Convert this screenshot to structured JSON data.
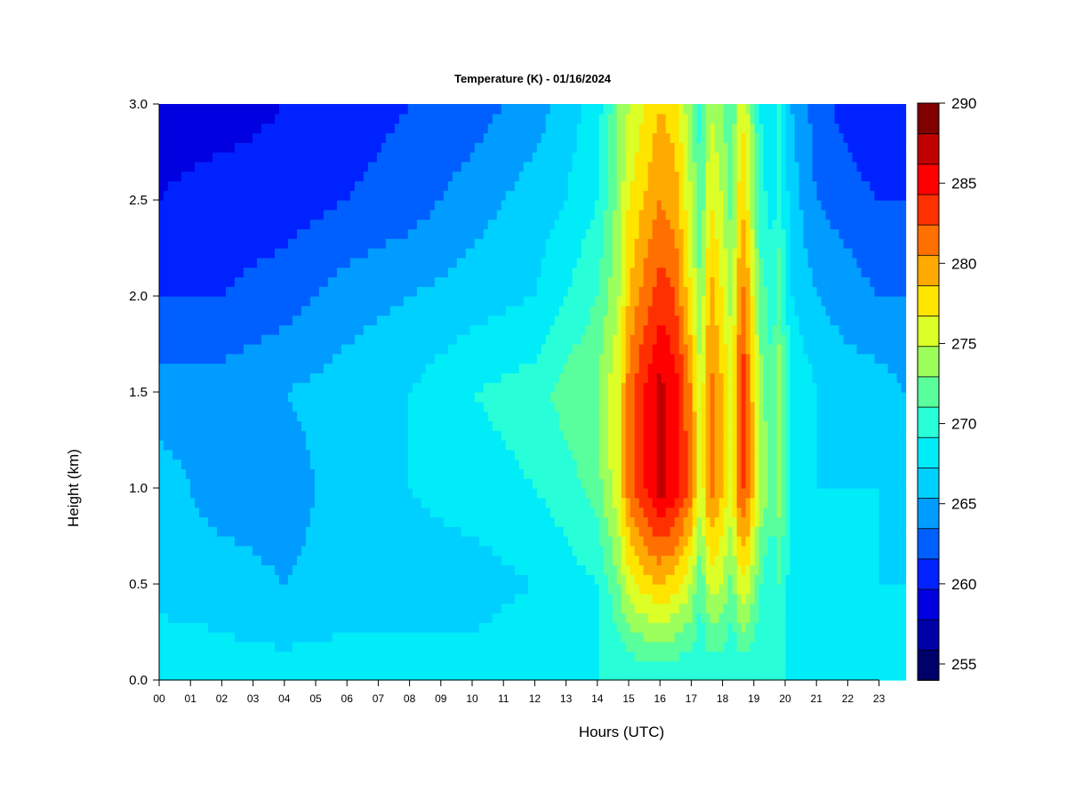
{
  "chart_data": {
    "type": "heatmap",
    "title": "Temperature (K) - 01/16/2024",
    "xlabel": "Hours (UTC)",
    "ylabel": "Height (km)",
    "x_ticks": [
      "00",
      "01",
      "02",
      "03",
      "04",
      "05",
      "06",
      "07",
      "08",
      "09",
      "10",
      "11",
      "12",
      "13",
      "14",
      "15",
      "16",
      "17",
      "18",
      "19",
      "20",
      "21",
      "22",
      "23"
    ],
    "xlim": [
      0,
      23.85
    ],
    "y_ticks": [
      "0.0",
      "0.5",
      "1.0",
      "1.5",
      "2.0",
      "2.5",
      "3.0"
    ],
    "ylim": [
      0,
      3.0
    ],
    "colorbar": {
      "ticks": [
        "255",
        "260",
        "265",
        "270",
        "275",
        "280",
        "285",
        "290"
      ],
      "range": [
        254,
        290
      ],
      "step": 2,
      "colors": [
        "#00006b",
        "#0000a8",
        "#0000e0",
        "#0022ff",
        "#0060ff",
        "#009cff",
        "#00d0ff",
        "#00ecf8",
        "#28ffd8",
        "#58ff9c",
        "#9cff5c",
        "#dcff28",
        "#ffe400",
        "#ffaa00",
        "#ff7000",
        "#ff3000",
        "#ff0000",
        "#c00000",
        "#800000"
      ]
    },
    "z_samples": {
      "description_hours": [
        0,
        2,
        4,
        6,
        8,
        10,
        12,
        13,
        14,
        14.7,
        15,
        15.5,
        16,
        16.5,
        17,
        17.3,
        17.6,
        18,
        18.3,
        18.6,
        18.8,
        19.2,
        19.6,
        19.8,
        20.2,
        21,
        22,
        23,
        23.85
      ],
      "heights_km": [
        0.0,
        0.5,
        1.0,
        1.5,
        2.0,
        2.5,
        3.0
      ]
    },
    "z_profiles": [
      {
        "hour": 0,
        "temps_K": [
          270,
          267,
          267,
          265,
          262,
          260,
          259
        ]
      },
      {
        "hour": 2,
        "temps_K": [
          269,
          267,
          265,
          265,
          262,
          261,
          259
        ]
      },
      {
        "hour": 4,
        "temps_K": [
          269,
          266,
          265,
          266,
          263,
          261,
          260
        ]
      },
      {
        "hour": 6,
        "temps_K": [
          269,
          267,
          267,
          267,
          265,
          262,
          261
        ]
      },
      {
        "hour": 8,
        "temps_K": [
          269,
          267,
          268,
          268,
          266,
          263,
          262
        ]
      },
      {
        "hour": 10,
        "temps_K": [
          269,
          267,
          269,
          270,
          267,
          265,
          263
        ]
      },
      {
        "hour": 12,
        "temps_K": [
          270,
          268,
          270,
          271,
          268,
          267,
          265
        ]
      },
      {
        "hour": 13,
        "temps_K": [
          270,
          269,
          271,
          273,
          270,
          268,
          267
        ]
      },
      {
        "hour": 14,
        "temps_K": [
          270,
          270,
          273,
          274,
          272,
          270,
          269
        ]
      },
      {
        "hour": 14.7,
        "temps_K": [
          270,
          274,
          278,
          278,
          276,
          275,
          274
        ]
      },
      {
        "hour": 15,
        "temps_K": [
          270,
          277,
          283,
          283,
          280,
          278,
          276
        ]
      },
      {
        "hour": 15.5,
        "temps_K": [
          270,
          279,
          286,
          286,
          283,
          280,
          278
        ]
      },
      {
        "hour": 16,
        "temps_K": [
          270,
          280,
          289,
          289,
          285,
          282,
          280
        ]
      },
      {
        "hour": 16.5,
        "temps_K": [
          270,
          279,
          287,
          287,
          284,
          281,
          279
        ]
      },
      {
        "hour": 17,
        "temps_K": [
          270,
          276,
          283,
          282,
          278,
          276,
          274
        ]
      },
      {
        "hour": 17.3,
        "temps_K": [
          270,
          272,
          276,
          276,
          274,
          272,
          271
        ]
      },
      {
        "hour": 17.6,
        "temps_K": [
          270,
          277,
          283,
          283,
          281,
          278,
          276
        ]
      },
      {
        "hour": 18,
        "temps_K": [
          270,
          276,
          280,
          280,
          278,
          276,
          274
        ]
      },
      {
        "hour": 18.3,
        "temps_K": [
          270,
          273,
          277,
          277,
          275,
          273,
          272
        ]
      },
      {
        "hour": 18.6,
        "temps_K": [
          270,
          278,
          285,
          286,
          283,
          280,
          278
        ]
      },
      {
        "hour": 18.8,
        "temps_K": [
          270,
          277,
          283,
          283,
          281,
          278,
          276
        ]
      },
      {
        "hour": 19.2,
        "temps_K": [
          270,
          272,
          276,
          275,
          273,
          271,
          270
        ]
      },
      {
        "hour": 19.6,
        "temps_K": [
          270,
          270,
          273,
          272,
          271,
          269,
          268
        ]
      },
      {
        "hour": 19.8,
        "temps_K": [
          270,
          272,
          275,
          275,
          273,
          271,
          270
        ]
      },
      {
        "hour": 20.2,
        "temps_K": [
          270,
          269,
          270,
          270,
          268,
          267,
          266
        ]
      },
      {
        "hour": 21,
        "temps_K": [
          270,
          268,
          268,
          268,
          266,
          264,
          263
        ]
      },
      {
        "hour": 22,
        "temps_K": [
          270,
          268,
          268,
          267,
          265,
          263,
          261
        ]
      },
      {
        "hour": 23,
        "temps_K": [
          270,
          268,
          268,
          267,
          264,
          262,
          260
        ]
      },
      {
        "hour": 23.85,
        "temps_K": [
          270,
          268,
          267,
          266,
          264,
          262,
          260
        ]
      }
    ],
    "grid": false,
    "legend": "colorbar-right"
  }
}
